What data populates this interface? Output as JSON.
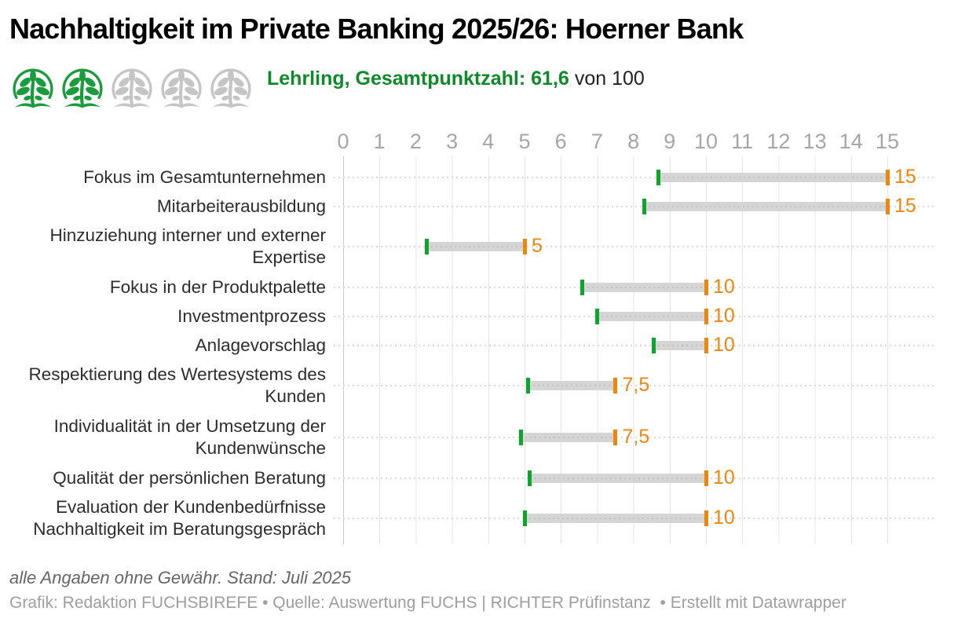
{
  "title": "Nachhaltigkeit im Private Banking 2025/26: Hoerner Bank",
  "rating": {
    "trees_filled": 2,
    "trees_total": 5,
    "highlight": "Lehrling, Gesamtpunktzahl: 61,6",
    "suffix": "von 100"
  },
  "chart_data": {
    "type": "bar",
    "subtype": "range-bullet",
    "orientation": "horizontal",
    "grid": true,
    "legend": "none",
    "xlim": [
      0,
      15
    ],
    "x_ticks": [
      0,
      1,
      2,
      3,
      4,
      5,
      6,
      7,
      8,
      9,
      10,
      11,
      12,
      13,
      14,
      15
    ],
    "categories": [
      [
        "Fokus im Gesamtunternehmen"
      ],
      [
        "Mitarbeiterausbildung"
      ],
      [
        "Hinzuziehung interner und externer",
        "Expertise"
      ],
      [
        "Fokus in der Produktpalette"
      ],
      [
        "Investmentprozess"
      ],
      [
        "Anlagevorschlag"
      ],
      [
        "Respektierung des Wertesystems des",
        "Kunden"
      ],
      [
        "Individualität in der Umsetzung der",
        "Kundenwünsche"
      ],
      [
        "Qualität der persönlichen Beratung"
      ],
      [
        "Evaluation der Kundenbedürfnisse",
        "Nachhaltigkeit im Beratungsgespräch"
      ]
    ],
    "series": [
      {
        "name": "score",
        "values": [
          8.7,
          8.3,
          2.3,
          6.6,
          7.0,
          8.55,
          5.1,
          4.9,
          5.15,
          5.0
        ]
      },
      {
        "name": "max",
        "values": [
          15,
          15,
          5,
          10,
          10,
          10,
          7.5,
          7.5,
          10,
          10
        ]
      }
    ],
    "value_labels": [
      "15",
      "15",
      "5",
      "10",
      "10",
      "10",
      "7,5",
      "7,5",
      "10",
      "10"
    ]
  },
  "footer": {
    "note": "alle Angaben ohne Gewähr. Stand: Juli 2025",
    "credits": "Grafik: Redaktion FUCHSBIREFE • Quelle: Auswertung FUCHS | RICHTER Prüfinstanz  • Erstellt mit Datawrapper"
  },
  "colors": {
    "green_subtitle": "#0e8b29",
    "green_tree": "#1a9c3c",
    "tree_gray": "#c5c5c5",
    "green_marker": "#0ca62c",
    "orange_marker": "#ee850d",
    "bar_gray": "#d5d5d5",
    "axis_gray": "#a6a6a6",
    "label_dark": "#2d2d2d"
  }
}
